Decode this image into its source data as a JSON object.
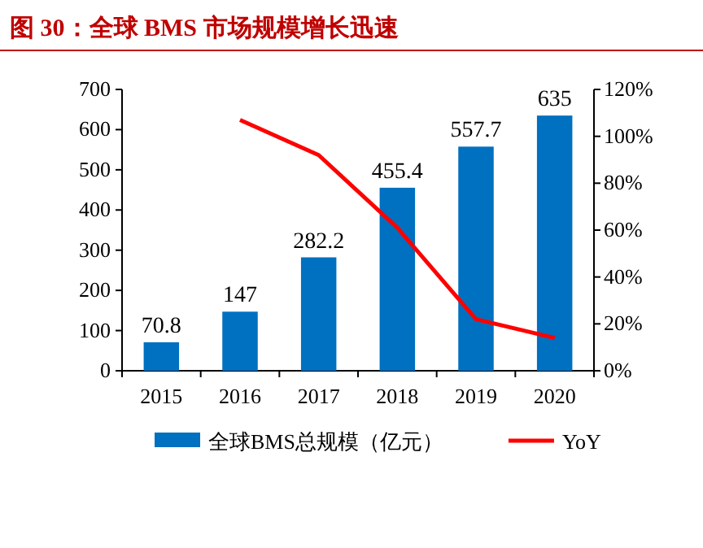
{
  "chart_data": {
    "type": "bar",
    "title": "图 30：全球 BMS 市场规模增长迅速",
    "categories": [
      "2015",
      "2016",
      "2017",
      "2018",
      "2019",
      "2020"
    ],
    "series": [
      {
        "name": "全球BMS总规模（亿元）",
        "color": "#0070c0",
        "values": [
          70.8,
          147,
          282.2,
          455.4,
          557.7,
          635
        ],
        "value_labels": [
          "70.8",
          "147",
          "282.2",
          "455.4",
          "557.7",
          "635"
        ]
      },
      {
        "name": "YoY",
        "type": "line",
        "axis": "y2",
        "color": "#ff0000",
        "values": [
          null,
          107,
          92,
          61,
          22,
          14
        ]
      }
    ],
    "ylim": [
      0,
      700
    ],
    "yticks": [
      0,
      100,
      200,
      300,
      400,
      500,
      600,
      700
    ],
    "y2lim": [
      0,
      120
    ],
    "y2ticks": [
      {
        "value": 0,
        "label": "0%"
      },
      {
        "value": 20,
        "label": "20%"
      },
      {
        "value": 40,
        "label": "40%"
      },
      {
        "value": 60,
        "label": "60%"
      },
      {
        "value": 80,
        "label": "80%"
      },
      {
        "value": 100,
        "label": "100%"
      },
      {
        "value": 120,
        "label": "120%"
      }
    ],
    "legend": "bottom"
  }
}
